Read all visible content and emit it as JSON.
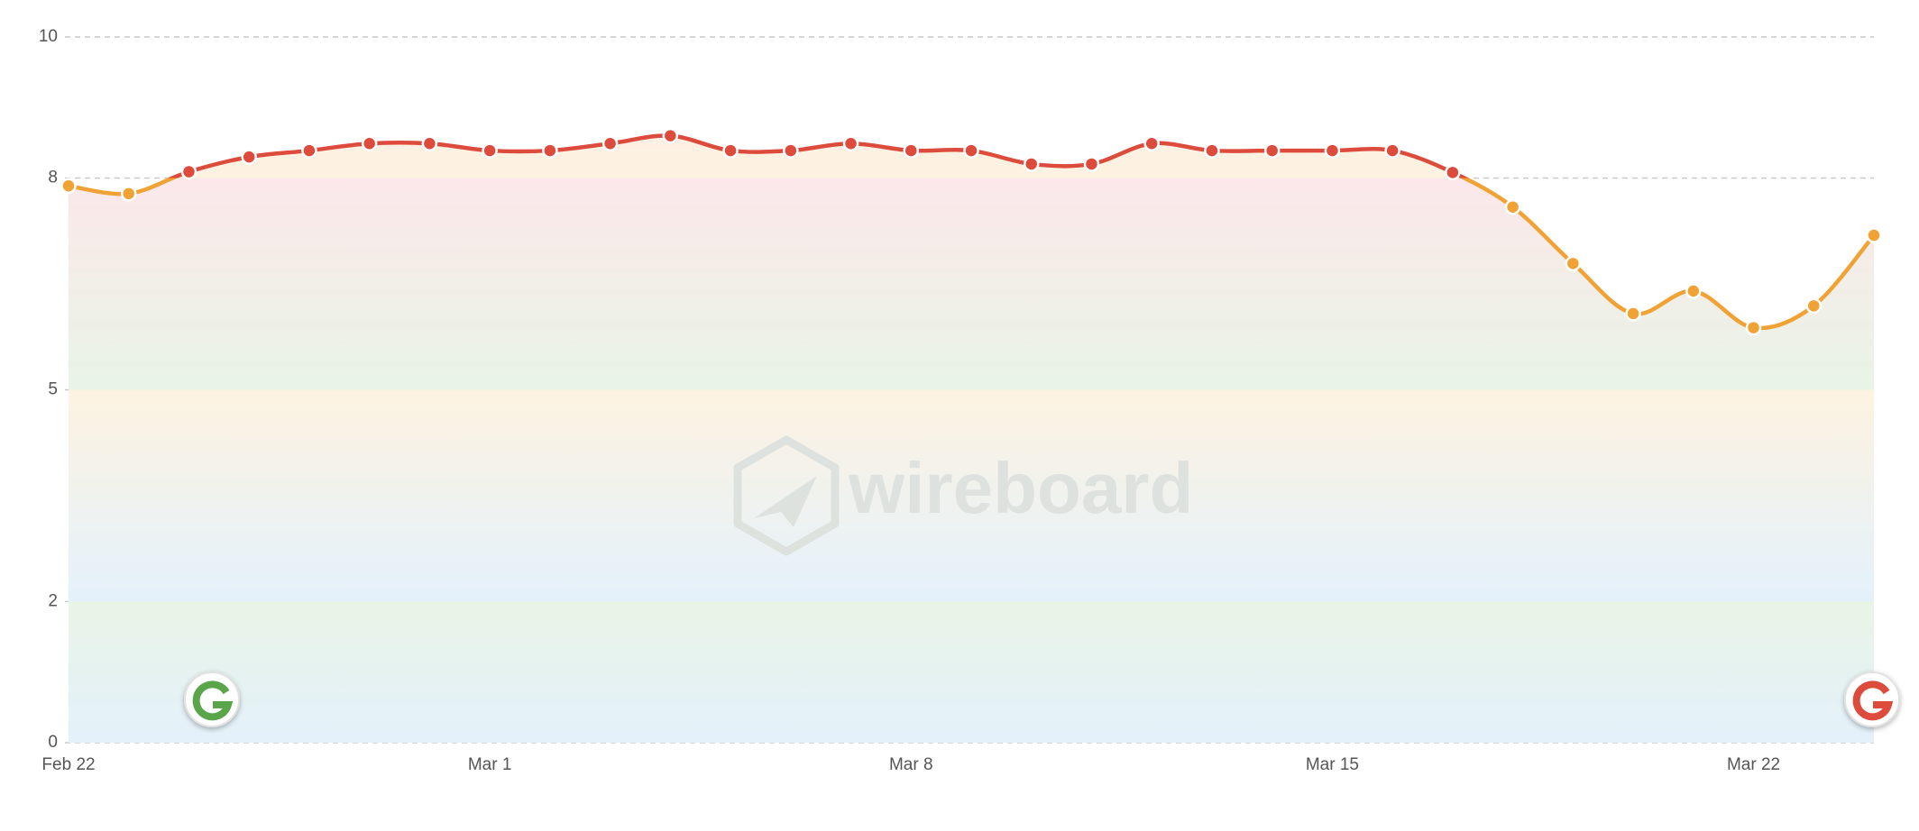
{
  "chart_data": {
    "type": "line",
    "watermark": "wireboard",
    "categories": [
      "Feb 22",
      null,
      null,
      null,
      null,
      null,
      null,
      "Mar 1",
      null,
      null,
      null,
      null,
      null,
      null,
      "Mar 8",
      null,
      null,
      null,
      null,
      null,
      null,
      "Mar 15",
      null,
      null,
      null,
      null,
      null,
      null,
      "Mar 22",
      null,
      null
    ],
    "series": [
      {
        "color": "#f0a235",
        "above": {
          "value": 8,
          "color": "#dd4b3c"
        },
        "values": [
          7.89,
          7.78,
          8.09,
          8.3,
          8.39,
          8.49,
          8.49,
          8.39,
          8.39,
          8.49,
          8.6,
          8.39,
          8.39,
          8.49,
          8.39,
          8.39,
          8.2,
          8.2,
          8.49,
          8.39,
          8.39,
          8.39,
          8.39,
          8.08,
          7.59,
          6.79,
          6.08,
          6.4,
          5.88,
          6.19,
          7.19
        ]
      }
    ],
    "bands": [
      {
        "from": 0,
        "to": 2,
        "color": "#e4f1fb"
      },
      {
        "from": 2,
        "to": 5,
        "color": "#e8f4e6"
      },
      {
        "from": 5,
        "to": 8,
        "color": "#fdf3e1"
      },
      {
        "from": 8,
        "to": 10,
        "color": "#fce8ea"
      }
    ],
    "ylim": [
      0,
      10
    ],
    "yticks": [
      0,
      2,
      5,
      8,
      10
    ],
    "grid": true
  }
}
